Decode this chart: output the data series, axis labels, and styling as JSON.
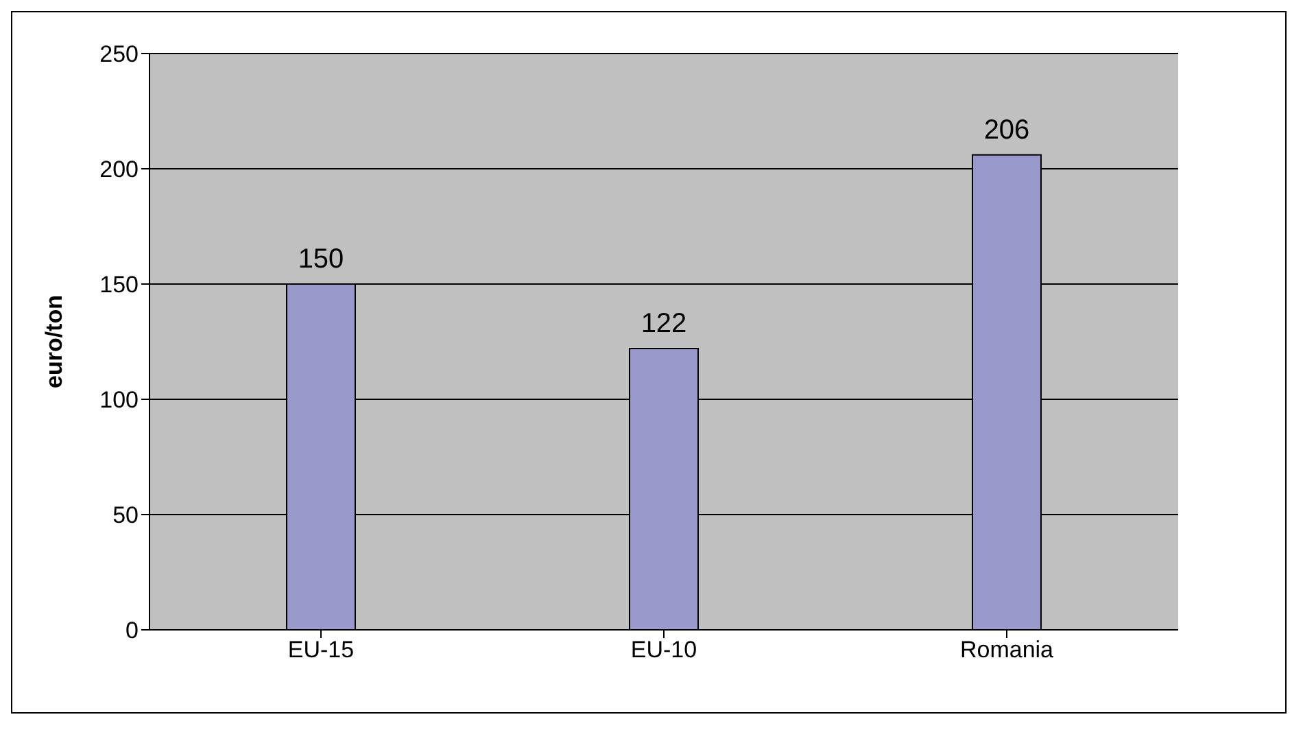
{
  "chart_data": {
    "type": "bar",
    "ylabel": "euro/ton",
    "categories": [
      "EU-15",
      "EU-10",
      "Romania"
    ],
    "values": [
      150,
      122,
      206
    ],
    "color": "#9999cc",
    "ylim": [
      0,
      250
    ],
    "yticks": [
      0,
      50,
      100,
      150,
      200,
      250
    ],
    "grid": "y",
    "data_labels": true
  }
}
